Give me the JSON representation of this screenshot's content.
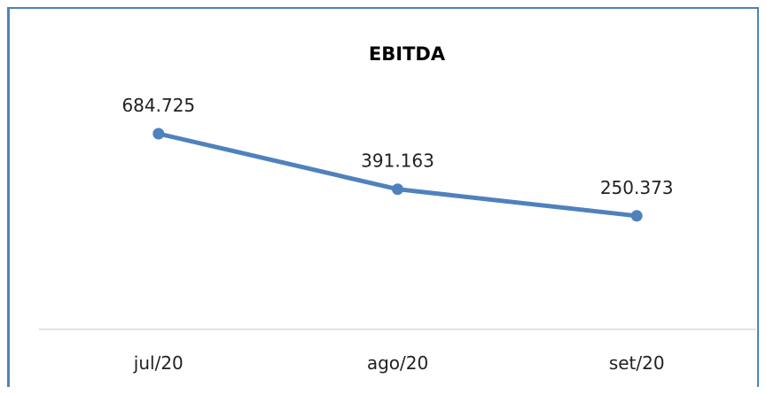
{
  "chart_data": {
    "type": "line",
    "title": "EBITDA",
    "xlabel": "",
    "ylabel": "",
    "categories": [
      "jul/20",
      "ago/20",
      "set/20"
    ],
    "series": [
      {
        "values": [
          684725,
          391163,
          250373
        ],
        "labels": [
          "684.725",
          "391.163",
          "250.373"
        ]
      }
    ],
    "ylim": [
      -350000,
      900000
    ],
    "grid": false,
    "legend": "none",
    "colors": {
      "line": "#4f81bd",
      "frame": "#4f81bd",
      "axis": "#d9d9d9"
    }
  }
}
